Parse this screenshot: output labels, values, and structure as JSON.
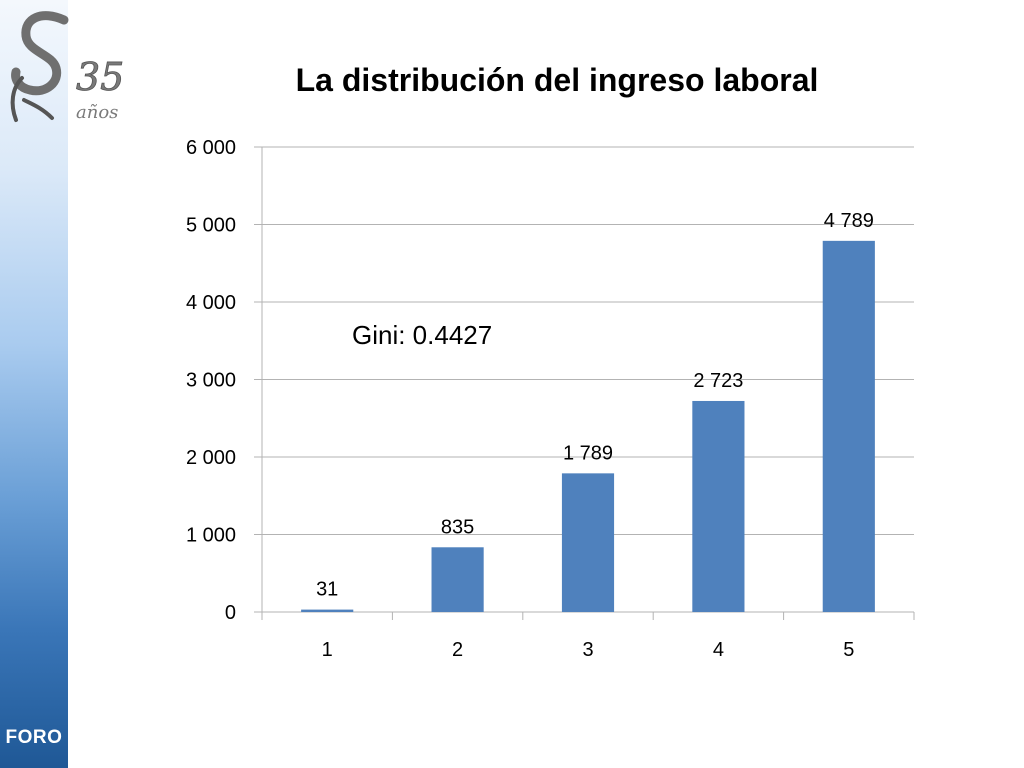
{
  "sidebar": {
    "label": "FORO"
  },
  "logo": {
    "number": "35",
    "word": "años"
  },
  "colors": {
    "bar": "#4f81bd",
    "gridline": "#b3b3b3",
    "sidebar_bottom": "#1f5896"
  },
  "annotation": "Gini: 0.4427",
  "chart_data": {
    "type": "bar",
    "title": "La distribución del ingreso laboral",
    "categories": [
      "1",
      "2",
      "3",
      "4",
      "5"
    ],
    "values": [
      31,
      835,
      1789,
      2723,
      4789
    ],
    "value_labels": [
      "31",
      "835",
      "1 789",
      "2 723",
      "4 789"
    ],
    "y_ticks": [
      0,
      1000,
      2000,
      3000,
      4000,
      5000,
      6000
    ],
    "y_tick_labels": [
      "0",
      "1 000",
      "2 000",
      "3 000",
      "4 000",
      "5 000",
      "6 000"
    ],
    "ylim": [
      0,
      6000
    ],
    "xlabel": "",
    "ylabel": "",
    "grid": true,
    "legend": "none"
  }
}
